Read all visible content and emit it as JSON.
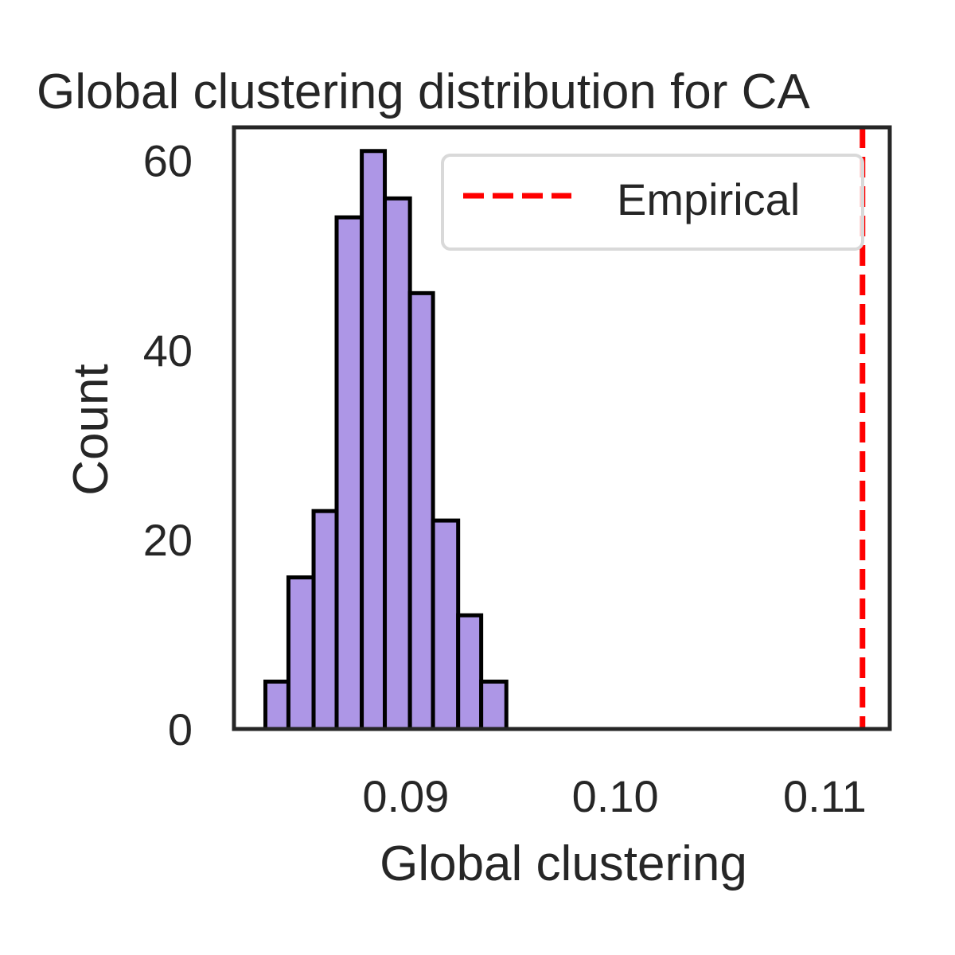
{
  "chart_data": {
    "type": "bar",
    "title": "Global clustering distribution for CA",
    "xlabel": "Global clustering",
    "ylabel": "Count",
    "bin_edges": [
      0.0833,
      0.0844,
      0.0856,
      0.0867,
      0.0879,
      0.089,
      0.0902,
      0.0913,
      0.0925,
      0.0936,
      0.0948
    ],
    "values": [
      5,
      16,
      23,
      54,
      61,
      56,
      46,
      22,
      12,
      5
    ],
    "xlim": [
      0.0818,
      0.1131
    ],
    "ylim": [
      0,
      63.5
    ],
    "xticks": [
      0.09,
      0.1,
      0.11
    ],
    "xtick_labels": [
      "0.09",
      "0.10",
      "0.11"
    ],
    "yticks": [
      0,
      20,
      40,
      60
    ],
    "ytick_labels": [
      "0",
      "20",
      "40",
      "60"
    ],
    "empirical_value": 0.1118,
    "legend": {
      "placement": "top-right",
      "entries": [
        {
          "label": "Empirical",
          "style": "dashed",
          "color": "#ff0000"
        }
      ]
    },
    "grid": false,
    "colors": {
      "bar_fill": "#ad96e6",
      "bar_edge": "#000000",
      "axis": "#262626",
      "empirical": "#ff0000"
    }
  }
}
